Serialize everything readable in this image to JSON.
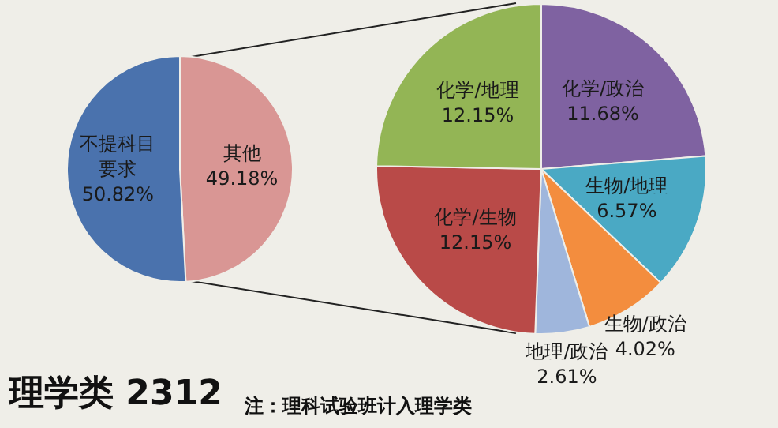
{
  "chart_data": [
    {
      "type": "pie",
      "title": "理学类 2312",
      "annotations": [
        "注：理科试验班计入理学类"
      ],
      "categories": [
        "其他",
        "不提科目要求"
      ],
      "values": [
        49.18,
        50.82
      ],
      "colors": [
        "#d99694",
        "#4a72ad"
      ],
      "value_labels": [
        "49.18%",
        "50.82%"
      ]
    },
    {
      "type": "pie",
      "categories": [
        "化学/政治",
        "生物/地理",
        "生物/政治",
        "地理/政治",
        "化学/生物",
        "化学/地理"
      ],
      "values": [
        11.68,
        6.57,
        4.02,
        2.61,
        12.15,
        12.15
      ],
      "colors": [
        "#7f62a1",
        "#4aa9c4",
        "#f38d3e",
        "#9fb6dc",
        "#b94a48",
        "#93b555"
      ],
      "value_labels": [
        "11.68%",
        "6.57%",
        "4.02%",
        "2.61%",
        "12.15%",
        "12.15%"
      ]
    }
  ]
}
